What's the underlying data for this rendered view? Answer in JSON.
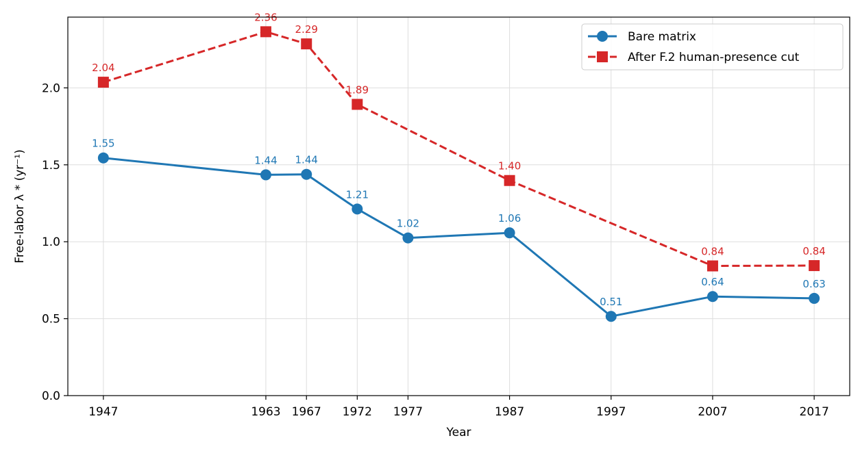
{
  "chart_data": {
    "type": "line",
    "title": "",
    "xlabel": "Year",
    "ylabel": "Free-labor λ *  (yr⁻¹)",
    "x_ticks": [
      "1947",
      "1963",
      "1967",
      "1972",
      "1977",
      "1987",
      "1997",
      "2007",
      "2017"
    ],
    "y_ticks": [
      "0.0",
      "0.5",
      "1.0",
      "1.5",
      "2.0"
    ],
    "xlim": [
      1943.5,
      2020.5
    ],
    "ylim": [
      0,
      2.46
    ],
    "grid": true,
    "legend_position": "top-right",
    "series": [
      {
        "name": "Bare matrix",
        "color": "#1f77b4",
        "line_style": "solid",
        "marker": "circle",
        "x": [
          1947,
          1963,
          1967,
          1972,
          1977,
          1987,
          1997,
          2007,
          2017
        ],
        "y": [
          1.545,
          1.435,
          1.438,
          1.213,
          1.025,
          1.058,
          0.515,
          0.644,
          0.632
        ],
        "labels": [
          "1.55",
          "1.44",
          "1.44",
          "1.21",
          "1.02",
          "1.06",
          "0.51",
          "0.64",
          "0.63"
        ]
      },
      {
        "name": "After F.2 human-presence cut",
        "color": "#d62728",
        "line_style": "dashed",
        "marker": "square",
        "x": [
          1947,
          1963,
          1967,
          1972,
          1987,
          2007,
          2017
        ],
        "y": [
          2.037,
          2.365,
          2.286,
          1.893,
          1.398,
          0.843,
          0.845
        ],
        "labels": [
          "2.04",
          "2.36",
          "2.29",
          "1.89",
          "1.40",
          "0.84",
          "0.84"
        ]
      }
    ]
  }
}
